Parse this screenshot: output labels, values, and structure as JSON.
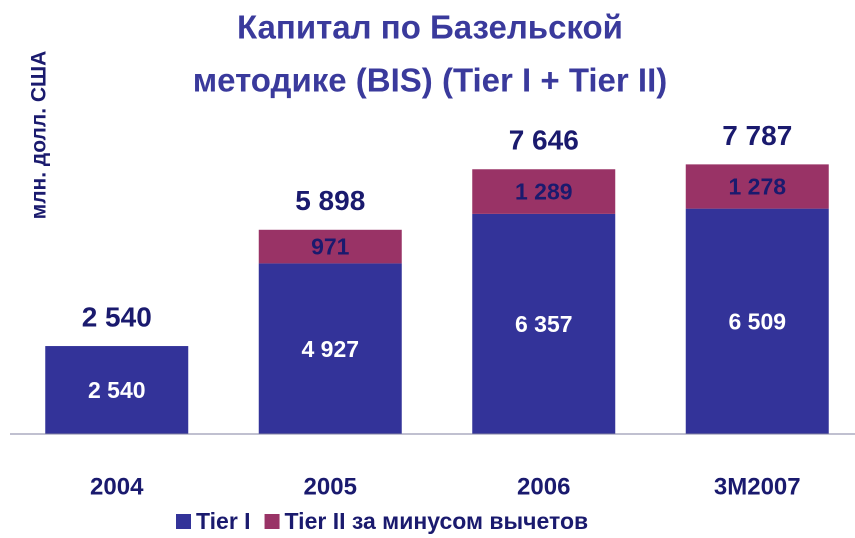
{
  "chart_data": {
    "type": "stacked_bar",
    "title": [
      "Капитал по Базельской",
      "методике (BIS) (Tier I + Tier II)"
    ],
    "y_label": "млн. долл. США",
    "categories": [
      "2004",
      "2005",
      "2006",
      "3M2007"
    ],
    "series": [
      {
        "name": "Tier I",
        "color": "#333399",
        "values": [
          2540,
          4927,
          6357,
          6509
        ],
        "value_labels": [
          "2 540",
          "4 927",
          "6 357",
          "6 509"
        ]
      },
      {
        "name": "Tier II за минусом вычетов",
        "color": "#993366",
        "values": [
          null,
          971,
          1289,
          1278
        ],
        "value_labels": [
          null,
          "971",
          "1 289",
          "1 278"
        ]
      }
    ],
    "totals": [
      2540,
      5898,
      7646,
      7787
    ],
    "total_labels": [
      "2 540",
      "5 898",
      "7 646",
      "7 787"
    ],
    "ylim": [
      0,
      8000
    ],
    "legend": "bottom"
  }
}
